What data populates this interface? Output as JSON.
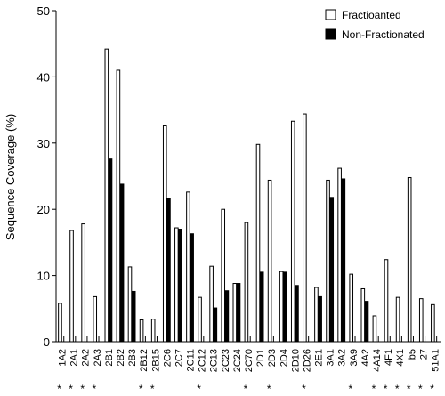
{
  "chart_data": {
    "type": "bar",
    "ylabel": "Sequence Coverage (%)",
    "ylim": [
      0,
      50
    ],
    "yticks": [
      0,
      10,
      20,
      30,
      40,
      50
    ],
    "legend_position": "top-right",
    "categories": [
      "1A2",
      "2A1",
      "2A2",
      "2A3",
      "2B1",
      "2B2",
      "2B3",
      "2B12",
      "2B15",
      "2C6",
      "2C7",
      "2C11",
      "2C12",
      "2C13",
      "2C23",
      "2C24",
      "2C70",
      "2D1",
      "2D3",
      "2D4",
      "2D10",
      "2D26",
      "2E1",
      "3A1",
      "3A2",
      "3A9",
      "4A2",
      "4A14",
      "4F1",
      "4X1",
      "b5",
      "27",
      "51A1"
    ],
    "starred": [
      true,
      true,
      true,
      true,
      false,
      false,
      false,
      true,
      true,
      false,
      false,
      false,
      true,
      false,
      false,
      false,
      true,
      false,
      true,
      false,
      false,
      true,
      false,
      false,
      false,
      true,
      false,
      true,
      true,
      true,
      true,
      true,
      true
    ],
    "series": [
      {
        "name": "Fractioanted",
        "color": "#ffffff",
        "values": [
          5.8,
          16.8,
          17.8,
          6.8,
          44.2,
          41.0,
          11.3,
          3.3,
          3.4,
          32.6,
          17.2,
          22.6,
          6.7,
          11.4,
          20.0,
          8.8,
          18.0,
          29.8,
          24.4,
          10.6,
          33.3,
          34.4,
          8.2,
          24.4,
          26.2,
          10.2,
          8.0,
          3.9,
          12.4,
          6.7,
          24.8,
          6.5,
          5.6
        ]
      },
      {
        "name": "Non-Fractionated",
        "color": "#000000",
        "values": [
          null,
          null,
          null,
          null,
          27.6,
          23.8,
          7.6,
          null,
          null,
          21.6,
          17.0,
          16.3,
          null,
          5.1,
          7.7,
          8.8,
          null,
          10.5,
          null,
          10.5,
          8.5,
          null,
          6.8,
          21.8,
          24.6,
          null,
          6.1,
          null,
          null,
          null,
          null,
          null,
          null
        ]
      }
    ]
  }
}
